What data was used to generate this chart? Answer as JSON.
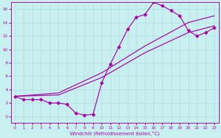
{
  "title": "",
  "xlabel": "Windchill (Refroidissement éolien,°C)",
  "ylabel": "",
  "bg_color": "#c8f0f0",
  "grid_color": "#b0dede",
  "line_color": "#aa00aa",
  "xlim": [
    -0.5,
    23.5
  ],
  "ylim": [
    -1.0,
    17.0
  ],
  "xticks": [
    0,
    1,
    2,
    3,
    4,
    5,
    6,
    7,
    8,
    9,
    10,
    11,
    12,
    13,
    14,
    15,
    16,
    17,
    18,
    19,
    20,
    21,
    22,
    23
  ],
  "yticks": [
    0,
    2,
    4,
    6,
    8,
    10,
    12,
    14,
    16
  ],
  "line1_x": [
    0,
    1,
    2,
    3,
    4,
    5,
    6,
    7,
    8,
    9,
    10,
    11,
    12,
    13,
    14,
    15,
    16,
    17,
    18,
    19,
    20,
    21,
    22,
    23
  ],
  "line1_y": [
    3.0,
    2.5,
    2.5,
    2.5,
    2.0,
    2.0,
    1.8,
    0.5,
    0.2,
    0.3,
    5.0,
    7.8,
    10.4,
    13.0,
    14.8,
    15.2,
    17.0,
    16.5,
    15.8,
    15.0,
    12.8,
    12.0,
    12.5,
    13.2
  ],
  "line2_x": [
    0,
    5,
    10,
    15,
    20,
    23
  ],
  "line2_y": [
    3.0,
    3.2,
    5.8,
    9.5,
    12.5,
    13.5
  ],
  "line3_x": [
    0,
    5,
    10,
    15,
    20,
    23
  ],
  "line3_y": [
    3.0,
    3.5,
    6.5,
    10.5,
    14.0,
    15.0
  ],
  "marker": "D",
  "markersize": 2.5,
  "linewidth": 0.9
}
